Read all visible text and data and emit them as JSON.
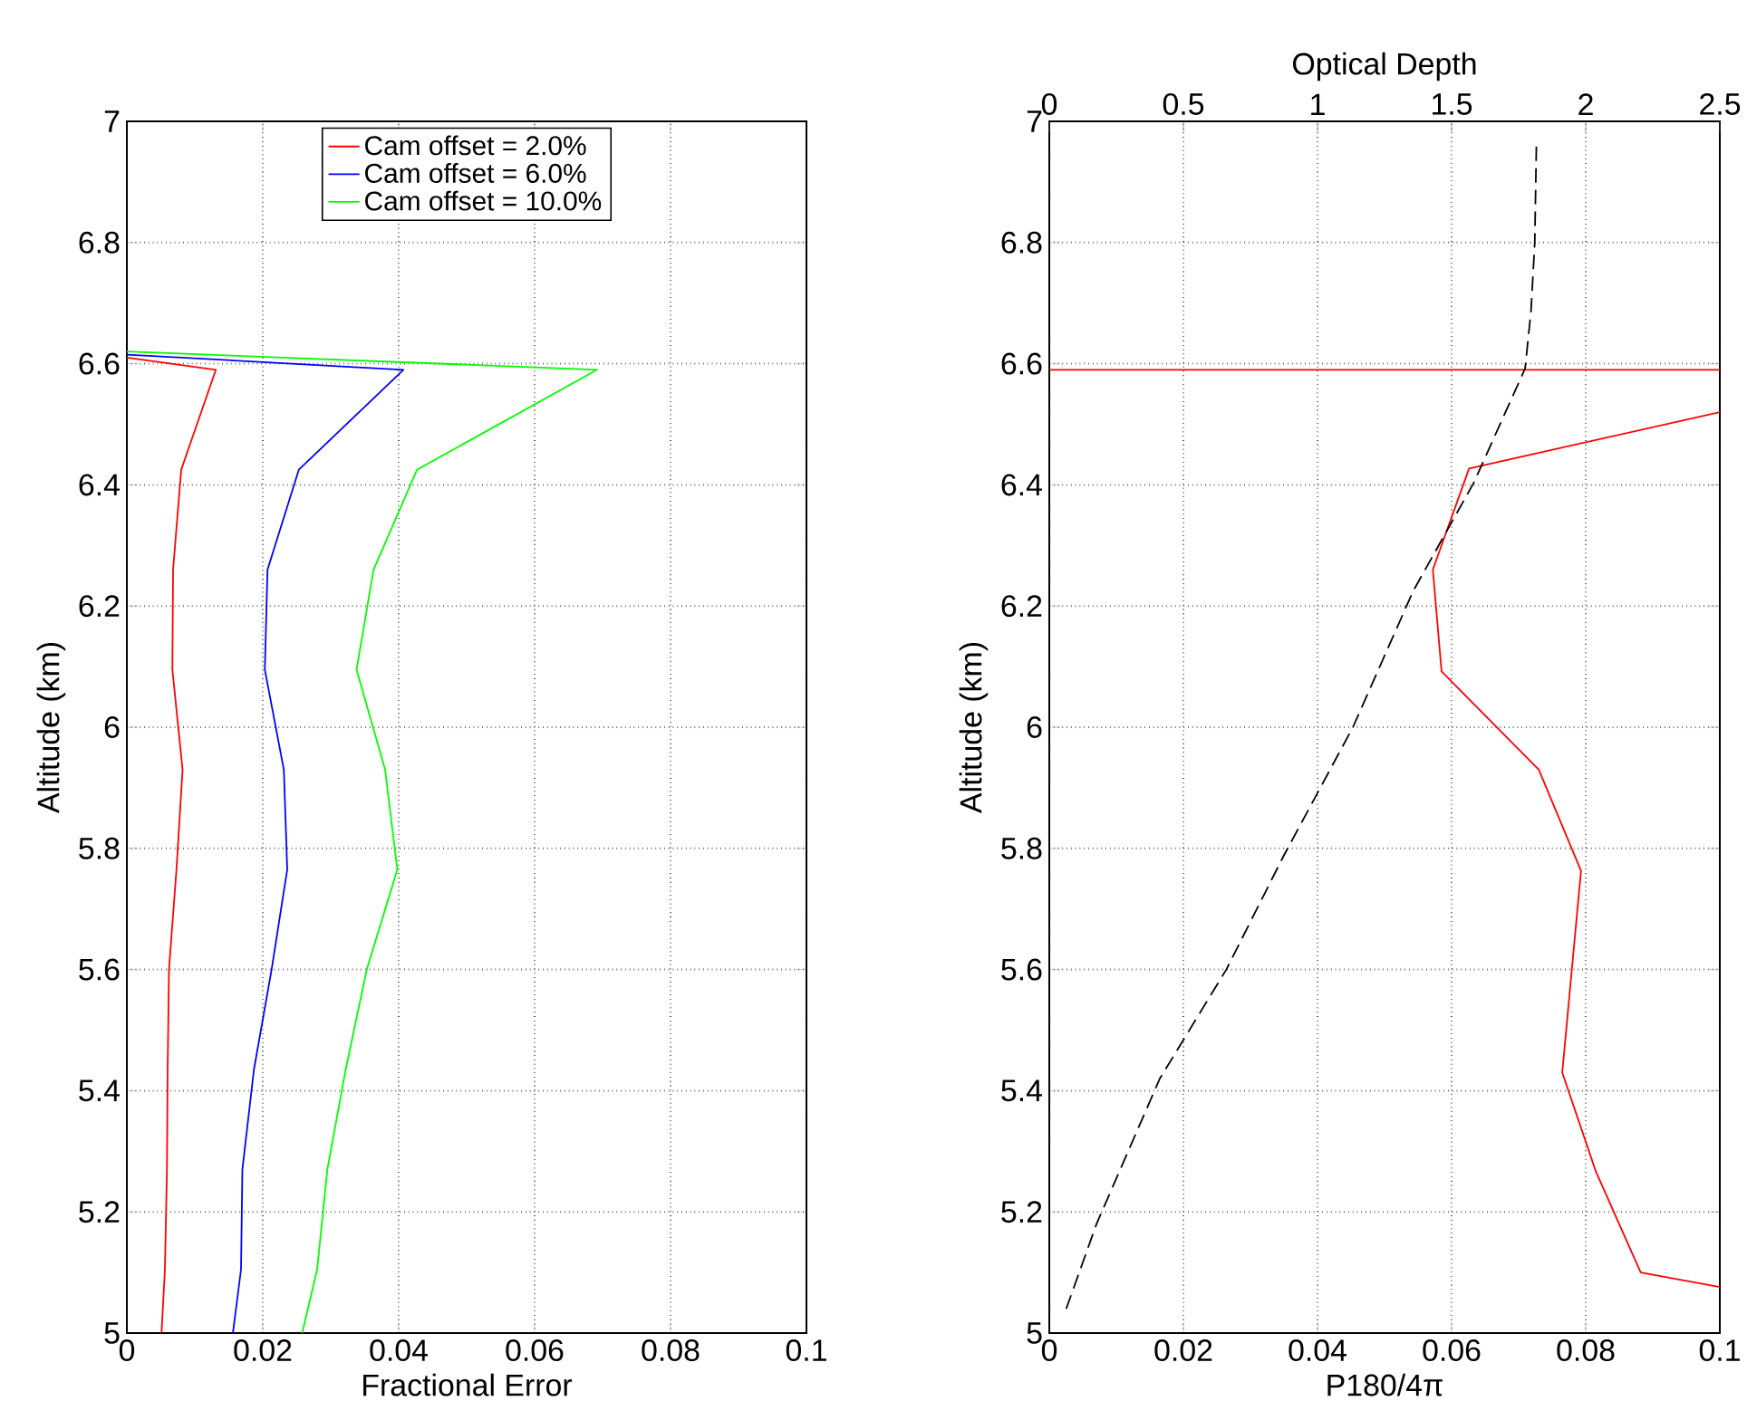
{
  "chart_data": [
    {
      "type": "line",
      "xlabel": "Fractional Error",
      "ylabel": "Altitude (km)",
      "xlim": [
        0,
        0.1
      ],
      "ylim": [
        5,
        7
      ],
      "xticks": [
        0,
        0.02,
        0.04,
        0.06,
        0.08,
        0.1
      ],
      "yticks": [
        5,
        5.2,
        5.4,
        5.6,
        5.8,
        6,
        6.2,
        6.4,
        6.6,
        6.8,
        7
      ],
      "grid": true,
      "legend": "top",
      "series": [
        {
          "name": "Cam offset = 2.0%",
          "color": "#ff0000",
          "x": [
            0,
            0.0131,
            0.008,
            0.0068,
            0.0067,
            0.0082,
            0.0073,
            0.0062,
            0.006,
            0.0059,
            0.0056,
            0.0051
          ],
          "values": [
            6.61,
            6.59,
            6.425,
            6.26,
            6.095,
            5.93,
            5.765,
            5.6,
            5.435,
            5.27,
            5.105,
            5.0
          ]
        },
        {
          "name": "Cam offset = 6.0%",
          "color": "#0000ff",
          "x": [
            0,
            0.0407,
            0.0253,
            0.0207,
            0.0203,
            0.0231,
            0.0236,
            0.0213,
            0.0187,
            0.017,
            0.0168,
            0.0156
          ],
          "values": [
            6.615,
            6.59,
            6.425,
            6.26,
            6.095,
            5.93,
            5.765,
            5.6,
            5.435,
            5.27,
            5.105,
            5.0
          ]
        },
        {
          "name": "Cam offset = 10.0%",
          "color": "#00ff00",
          "x": [
            0,
            0.0692,
            0.0427,
            0.0363,
            0.0338,
            0.038,
            0.0398,
            0.0353,
            0.0322,
            0.0295,
            0.028,
            0.0258
          ],
          "values": [
            6.62,
            6.59,
            6.425,
            6.26,
            6.095,
            5.93,
            5.765,
            5.6,
            5.435,
            5.27,
            5.105,
            5.0
          ]
        }
      ]
    },
    {
      "type": "line",
      "xlabel": "P180/4π",
      "ylabel": "Altitude (km)",
      "x2label": "Optical Depth",
      "xlim": [
        0,
        0.1
      ],
      "ylim": [
        5,
        7
      ],
      "x2lim": [
        0,
        2.5
      ],
      "xticks": [
        0,
        0.02,
        0.04,
        0.06,
        0.08,
        0.1
      ],
      "x2ticks": [
        0,
        0.5,
        1,
        1.5,
        2,
        2.5
      ],
      "yticks": [
        5,
        5.2,
        5.4,
        5.6,
        5.8,
        6,
        6.2,
        6.4,
        6.6,
        6.8,
        7
      ],
      "grid": true,
      "series": [
        {
          "color": "#ff0000",
          "x": [
            0,
            0.1,
            null,
            0.1,
            0.0626,
            0.0572,
            0.0585,
            0.073,
            0.0793,
            0.0765,
            0.0815,
            0.0882,
            0.1
          ],
          "values": [
            6.59,
            6.59,
            null,
            6.52,
            6.427,
            6.26,
            6.092,
            5.93,
            5.763,
            5.43,
            5.267,
            5.1,
            5.076
          ]
        },
        {
          "color": "#000000",
          "axis": "x2",
          "line_style": "dashed",
          "x": [
            0.063,
            0.176,
            0.412,
            0.66,
            0.873,
            1.132,
            1.357,
            1.582,
            1.774,
            1.796,
            1.81,
            1.816
          ],
          "values": [
            5.04,
            5.18,
            5.42,
            5.6,
            5.787,
            6.0,
            6.225,
            6.403,
            6.592,
            6.687,
            6.8,
            6.96
          ]
        }
      ]
    }
  ]
}
